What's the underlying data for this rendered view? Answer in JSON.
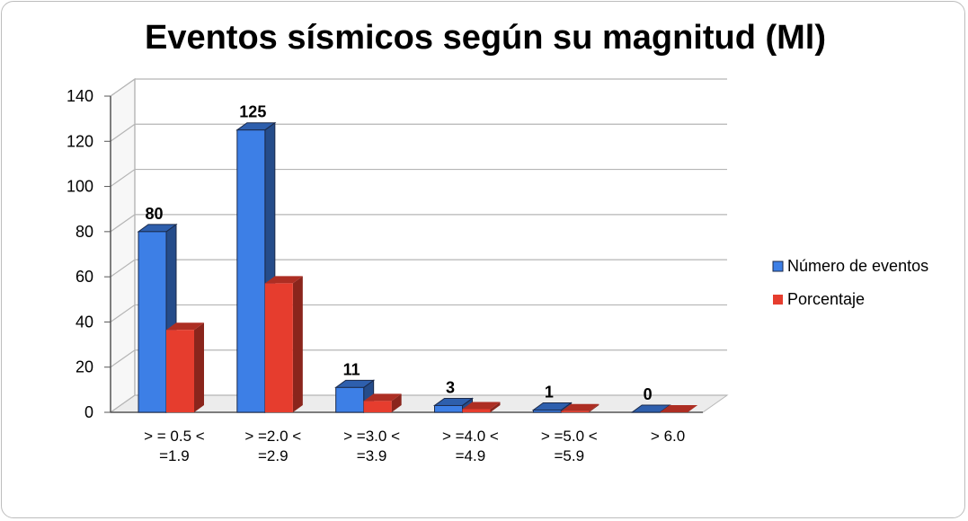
{
  "chart_data": {
    "type": "bar",
    "title": "Eventos sísmicos según su magnitud (Ml)",
    "categories": [
      [
        "> = 0.5 <",
        "=1.9"
      ],
      [
        "> =2.0 <",
        "=2.9"
      ],
      [
        "> =3.0 <",
        "=3.9"
      ],
      [
        "> =4.0 <",
        "=4.9"
      ],
      [
        "> =5.0 <",
        "=5.9"
      ],
      [
        "> 6.0"
      ]
    ],
    "series": [
      {
        "name": "Número de eventos",
        "values": [
          80,
          125,
          11,
          3,
          1,
          0
        ],
        "color": "#3d7fe6",
        "show_labels": true
      },
      {
        "name": "Porcentaje",
        "values": [
          36.5,
          57.1,
          5.0,
          1.4,
          0.5,
          0
        ],
        "color": "#e63d2e",
        "show_labels": false
      }
    ],
    "ylim": [
      0,
      140
    ],
    "yticks": [
      "0",
      "20",
      "40",
      "60",
      "80",
      "100",
      "120",
      "140"
    ],
    "grid": true,
    "legend": "right",
    "style": "3d-clustered"
  }
}
